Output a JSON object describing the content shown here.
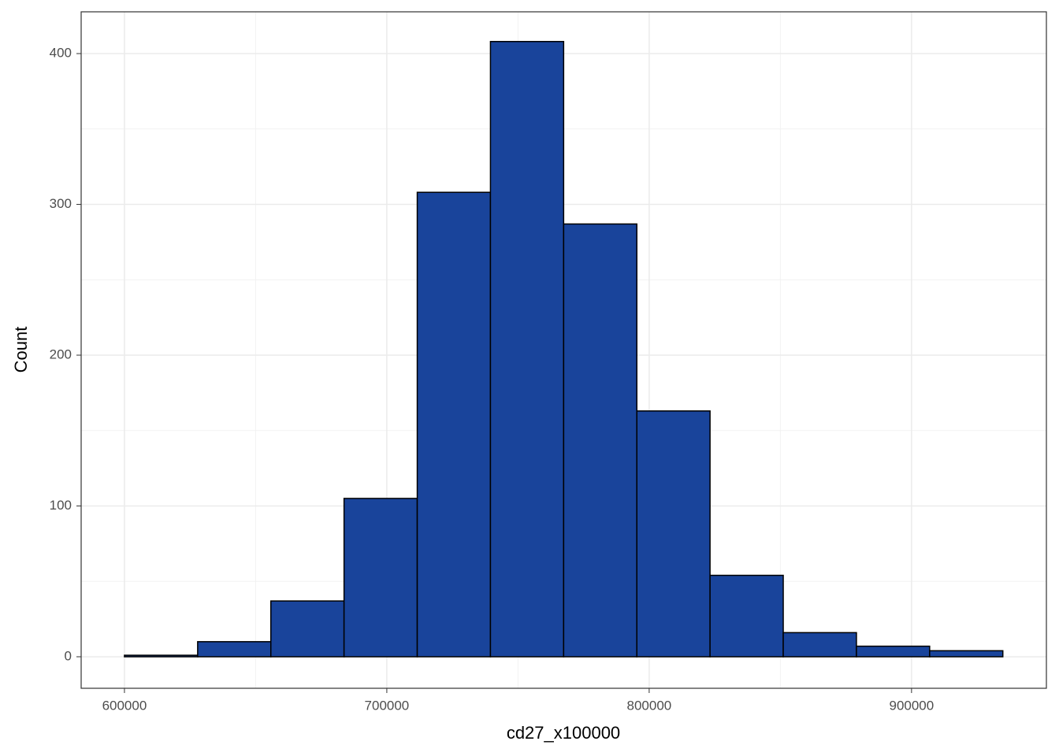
{
  "chart_data": {
    "type": "histogram",
    "x_label": "cd27_x100000",
    "y_label": "Count",
    "bins": [
      600000,
      627900,
      655800,
      683700,
      711600,
      739500,
      767400,
      795300,
      823200,
      851100,
      879000,
      906900,
      934800
    ],
    "values": [
      1,
      10,
      37,
      105,
      308,
      408,
      287,
      163,
      54,
      16,
      7,
      4
    ],
    "color": "#19449b",
    "edge_color": "#000000",
    "xlim": [
      583500,
      951400
    ],
    "ylim": [
      -20.9,
      427.7
    ],
    "xticks": [
      600000,
      700000,
      800000,
      900000
    ],
    "yticks": [
      0,
      100,
      200,
      300,
      400
    ],
    "grid": true
  }
}
